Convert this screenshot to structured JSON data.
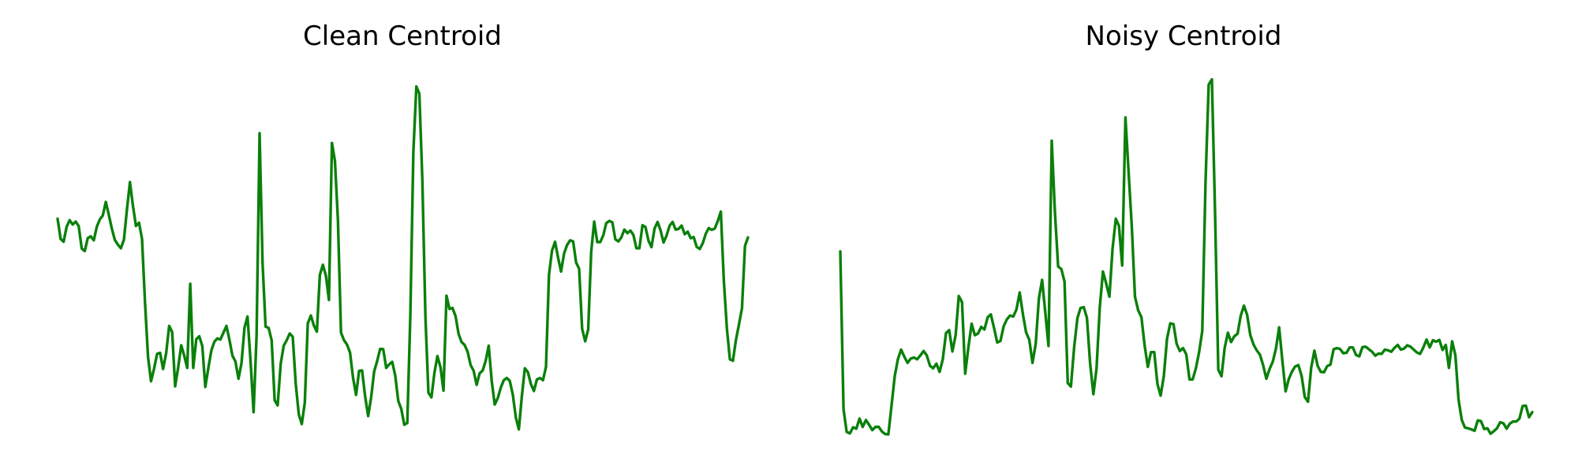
{
  "chart_data": [
    {
      "type": "line",
      "title": "Clean Centroid",
      "xlabel": "",
      "ylabel": "",
      "axis_visible": false,
      "grid": false,
      "line_color": "#0a800a",
      "series": [
        {
          "values": [
            0.602,
            0.546,
            0.538,
            0.58,
            0.598,
            0.586,
            0.594,
            0.582,
            0.519,
            0.512,
            0.548,
            0.553,
            0.542,
            0.58,
            0.6,
            0.611,
            0.649,
            0.612,
            0.574,
            0.543,
            0.53,
            0.52,
            0.544,
            0.628,
            0.704,
            0.638,
            0.582,
            0.591,
            0.546,
            0.369,
            0.218,
            0.15,
            0.185,
            0.226,
            0.229,
            0.184,
            0.228,
            0.304,
            0.287,
            0.136,
            0.188,
            0.25,
            0.221,
            0.187,
            0.421,
            0.187,
            0.267,
            0.275,
            0.248,
            0.134,
            0.186,
            0.236,
            0.26,
            0.269,
            0.266,
            0.285,
            0.304,
            0.265,
            0.221,
            0.205,
            0.157,
            0.201,
            0.299,
            0.33,
            0.208,
            0.064,
            0.277,
            0.84,
            0.478,
            0.302,
            0.298,
            0.264,
            0.097,
            0.083,
            0.199,
            0.249,
            0.264,
            0.283,
            0.274,
            0.141,
            0.058,
            0.031,
            0.09,
            0.311,
            0.333,
            0.305,
            0.288,
            0.446,
            0.474,
            0.443,
            0.376,
            0.813,
            0.763,
            0.598,
            0.285,
            0.264,
            0.252,
            0.23,
            0.159,
            0.112,
            0.179,
            0.18,
            0.109,
            0.053,
            0.105,
            0.177,
            0.206,
            0.24,
            0.239,
            0.187,
            0.197,
            0.204,
            0.166,
            0.095,
            0.073,
            0.029,
            0.034,
            0.335,
            0.788,
            0.97,
            0.95,
            0.71,
            0.329,
            0.118,
            0.105,
            0.173,
            0.22,
            0.189,
            0.124,
            0.388,
            0.351,
            0.354,
            0.331,
            0.282,
            0.259,
            0.251,
            0.232,
            0.195,
            0.179,
            0.14,
            0.172,
            0.18,
            0.207,
            0.249,
            0.151,
            0.085,
            0.103,
            0.132,
            0.153,
            0.159,
            0.151,
            0.112,
            0.049,
            0.016,
            0.108,
            0.186,
            0.175,
            0.142,
            0.123,
            0.155,
            0.159,
            0.153,
            0.19,
            0.446,
            0.513,
            0.538,
            0.494,
            0.455,
            0.505,
            0.529,
            0.542,
            0.539,
            0.48,
            0.463,
            0.296,
            0.261,
            0.294,
            0.51,
            0.594,
            0.537,
            0.537,
            0.556,
            0.59,
            0.596,
            0.592,
            0.545,
            0.539,
            0.55,
            0.572,
            0.562,
            0.569,
            0.557,
            0.52,
            0.52,
            0.584,
            0.579,
            0.541,
            0.523,
            0.575,
            0.593,
            0.57,
            0.536,
            0.555,
            0.583,
            0.593,
            0.572,
            0.574,
            0.583,
            0.559,
            0.566,
            0.548,
            0.551,
            0.524,
            0.518,
            0.534,
            0.56,
            0.576,
            0.571,
            0.575,
            0.596,
            0.622,
            0.43,
            0.296,
            0.211,
            0.207,
            0.264,
            0.307,
            0.353,
            0.526,
            0.55
          ]
        }
      ]
    },
    {
      "type": "line",
      "title": "Noisy Centroid",
      "xlabel": "",
      "ylabel": "",
      "axis_visible": false,
      "grid": false,
      "line_color": "#0a800a",
      "series": [
        {
          "values": [
            0.511,
            0.072,
            0.009,
            0.005,
            0.022,
            0.018,
            0.046,
            0.023,
            0.042,
            0.029,
            0.014,
            0.023,
            0.023,
            0.01,
            0.003,
            0.002,
            0.083,
            0.164,
            0.212,
            0.238,
            0.218,
            0.201,
            0.213,
            0.216,
            0.211,
            0.222,
            0.234,
            0.222,
            0.193,
            0.186,
            0.199,
            0.176,
            0.211,
            0.284,
            0.292,
            0.233,
            0.278,
            0.387,
            0.37,
            0.171,
            0.245,
            0.31,
            0.278,
            0.283,
            0.301,
            0.294,
            0.328,
            0.336,
            0.298,
            0.258,
            0.262,
            0.303,
            0.322,
            0.333,
            0.33,
            0.35,
            0.397,
            0.337,
            0.286,
            0.265,
            0.201,
            0.254,
            0.38,
            0.432,
            0.34,
            0.248,
            0.819,
            0.622,
            0.469,
            0.462,
            0.427,
            0.145,
            0.135,
            0.244,
            0.325,
            0.354,
            0.356,
            0.326,
            0.198,
            0.114,
            0.186,
            0.356,
            0.455,
            0.422,
            0.385,
            0.519,
            0.602,
            0.582,
            0.472,
            0.884,
            0.733,
            0.579,
            0.385,
            0.347,
            0.328,
            0.25,
            0.19,
            0.231,
            0.231,
            0.142,
            0.11,
            0.165,
            0.268,
            0.311,
            0.309,
            0.254,
            0.234,
            0.242,
            0.225,
            0.155,
            0.155,
            0.186,
            0.23,
            0.29,
            0.702,
            0.975,
            0.99,
            0.618,
            0.182,
            0.164,
            0.243,
            0.285,
            0.259,
            0.275,
            0.282,
            0.332,
            0.36,
            0.335,
            0.278,
            0.252,
            0.236,
            0.224,
            0.195,
            0.157,
            0.184,
            0.204,
            0.241,
            0.3,
            0.207,
            0.122,
            0.156,
            0.177,
            0.191,
            0.195,
            0.165,
            0.106,
            0.093,
            0.187,
            0.235,
            0.193,
            0.176,
            0.175,
            0.192,
            0.196,
            0.239,
            0.242,
            0.24,
            0.228,
            0.229,
            0.244,
            0.244,
            0.223,
            0.219,
            0.245,
            0.246,
            0.239,
            0.232,
            0.221,
            0.227,
            0.226,
            0.238,
            0.236,
            0.232,
            0.243,
            0.251,
            0.238,
            0.241,
            0.25,
            0.246,
            0.238,
            0.23,
            0.226,
            0.244,
            0.266,
            0.244,
            0.264,
            0.26,
            0.265,
            0.237,
            0.251,
            0.187,
            0.261,
            0.222,
            0.099,
            0.042,
            0.021,
            0.019,
            0.016,
            0.012,
            0.041,
            0.039,
            0.017,
            0.019,
            0.004,
            0.011,
            0.019,
            0.036,
            0.033,
            0.018,
            0.032,
            0.038,
            0.038,
            0.046,
            0.081,
            0.082,
            0.05,
            0.064
          ]
        }
      ]
    }
  ]
}
